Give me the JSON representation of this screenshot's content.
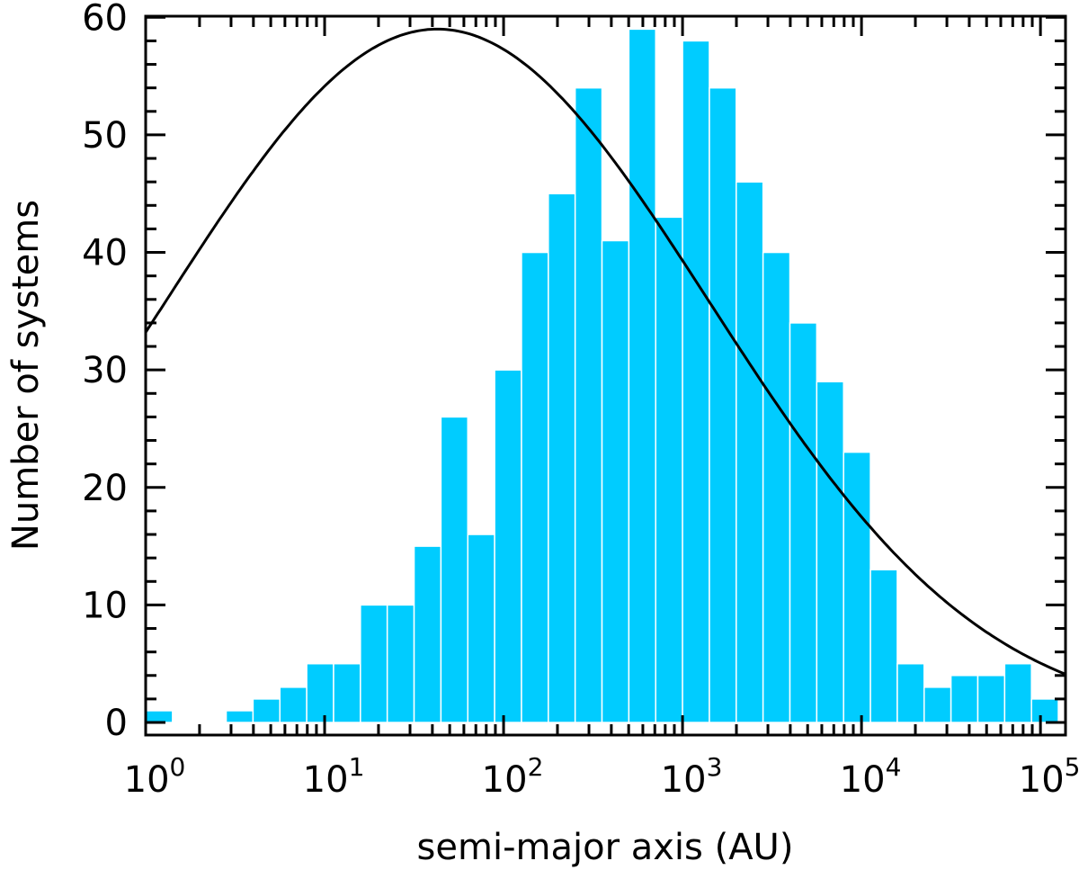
{
  "chart_data": {
    "type": "bar",
    "title": "",
    "xlabel": "semi-major axis (AU)",
    "ylabel": "Number of systems",
    "xscale": "log",
    "xlim_log10": [
      0,
      5.14
    ],
    "ylim": [
      -1.07,
      60.1
    ],
    "x_ticks": [
      {
        "base": "10",
        "exp": "0"
      },
      {
        "base": "10",
        "exp": "1"
      },
      {
        "base": "10",
        "exp": "2"
      },
      {
        "base": "10",
        "exp": "3"
      },
      {
        "base": "10",
        "exp": "4"
      },
      {
        "base": "10",
        "exp": "5"
      }
    ],
    "y_ticks": [
      "0",
      "10",
      "20",
      "30",
      "40",
      "50",
      "60"
    ],
    "bin_width_log10": 0.15,
    "bin_start_log10": 0,
    "values": [
      1,
      0,
      0,
      1,
      2,
      3,
      5,
      5,
      10,
      10,
      15,
      26,
      16,
      30,
      40,
      45,
      54,
      41,
      59,
      43,
      58,
      54,
      46,
      40,
      34,
      29,
      23,
      13,
      5,
      3,
      4,
      4,
      5,
      2
    ],
    "bar_color": "#00ccff",
    "curve": {
      "type": "gaussian in log10(a)",
      "peak": 59,
      "mean_log10": 1.63,
      "sigma_log10": 1.52,
      "color": "#000000"
    }
  }
}
